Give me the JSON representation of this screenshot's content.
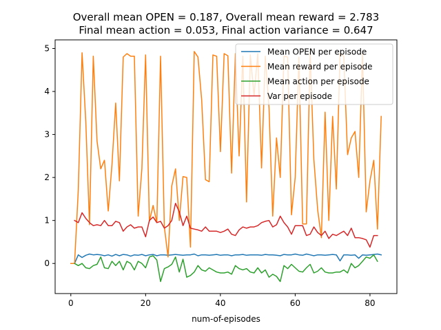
{
  "chart_data": {
    "type": "line",
    "title_lines": [
      "Overall mean OPEN = 0.187, Overall mean reward = 2.783",
      "Final mean action = 0.053, Final action variance = 0.647"
    ],
    "xlabel": "num-of-episodes",
    "ylabel": "",
    "xlim": [
      -4.2,
      87.2
    ],
    "ylim": [
      -0.7,
      5.2
    ],
    "xticks": [
      0,
      20,
      40,
      60,
      80
    ],
    "yticks": [
      0,
      1,
      2,
      3,
      4,
      5
    ],
    "grid": false,
    "legend_position": "top-right",
    "series": [
      {
        "name": "Mean OPEN per episode",
        "color": "#1f77b4",
        "x": [
          1,
          2,
          3,
          4,
          5,
          6,
          7,
          8,
          9,
          10,
          11,
          12,
          13,
          14,
          15,
          16,
          17,
          18,
          19,
          20,
          21,
          22,
          23,
          24,
          25,
          26,
          27,
          28,
          29,
          30,
          31,
          32,
          33,
          34,
          35,
          36,
          37,
          38,
          39,
          40,
          41,
          42,
          43,
          44,
          45,
          46,
          47,
          48,
          49,
          50,
          51,
          52,
          53,
          54,
          55,
          56,
          57,
          58,
          59,
          60,
          61,
          62,
          63,
          64,
          65,
          66,
          67,
          68,
          69,
          70,
          71,
          72,
          73,
          74,
          75,
          76,
          77,
          78,
          79,
          80,
          81,
          82,
          83
        ],
        "values": [
          0.0,
          0.2,
          0.14,
          0.19,
          0.22,
          0.2,
          0.21,
          0.2,
          0.18,
          0.2,
          0.17,
          0.21,
          0.18,
          0.21,
          0.2,
          0.17,
          0.2,
          0.19,
          0.21,
          0.18,
          0.2,
          0.21,
          0.18,
          0.2,
          0.2,
          0.19,
          0.2,
          0.21,
          0.2,
          0.19,
          0.2,
          0.2,
          0.22,
          0.18,
          0.2,
          0.2,
          0.19,
          0.2,
          0.21,
          0.19,
          0.2,
          0.2,
          0.18,
          0.2,
          0.2,
          0.21,
          0.19,
          0.2,
          0.2,
          0.2,
          0.19,
          0.21,
          0.2,
          0.2,
          0.19,
          0.18,
          0.21,
          0.2,
          0.2,
          0.22,
          0.2,
          0.19,
          0.22,
          0.2,
          0.18,
          0.2,
          0.2,
          0.19,
          0.2,
          0.21,
          0.2,
          0.06,
          0.2,
          0.2,
          0.19,
          0.2,
          0.12,
          0.2,
          0.19,
          0.2,
          0.21,
          0.22,
          0.2
        ]
      },
      {
        "name": "Mean reward per episode",
        "color": "#ff7f0e",
        "x": [
          0,
          1,
          2,
          3,
          4,
          5,
          6,
          7,
          8,
          9,
          10,
          11,
          12,
          13,
          14,
          15,
          16,
          17,
          18,
          19,
          20,
          21,
          22,
          23,
          24,
          25,
          26,
          27,
          28,
          29,
          30,
          31,
          32,
          33,
          34,
          35,
          36,
          37,
          38,
          39,
          40,
          41,
          42,
          43,
          44,
          45,
          46,
          47,
          48,
          49,
          50,
          51,
          52,
          53,
          54,
          55,
          56,
          57,
          58,
          59,
          60,
          61,
          62,
          63,
          64,
          65,
          66,
          67,
          68,
          69,
          70,
          71,
          72,
          73,
          74,
          75,
          76,
          77,
          78,
          79,
          80,
          81,
          82,
          83
        ],
        "values": [
          0.0,
          0.0,
          1.7,
          4.9,
          3.3,
          0.9,
          4.82,
          2.85,
          2.2,
          2.4,
          1.22,
          2.3,
          3.73,
          1.92,
          4.8,
          4.88,
          4.82,
          4.82,
          1.1,
          2.2,
          4.85,
          0.98,
          1.35,
          0.95,
          4.82,
          0.85,
          0.15,
          1.8,
          2.2,
          1.0,
          2.02,
          2.0,
          0.38,
          4.93,
          4.8,
          3.8,
          1.95,
          1.9,
          4.85,
          4.82,
          2.6,
          4.88,
          4.83,
          2.1,
          4.88,
          2.5,
          4.82,
          1.43,
          4.85,
          3.9,
          4.88,
          2.22,
          4.82,
          3.62,
          1.1,
          2.92,
          2.0,
          4.82,
          4.8,
          1.13,
          2.0,
          4.8,
          0.92,
          0.92,
          4.9,
          2.42,
          1.25,
          0.6,
          3.52,
          1.0,
          3.42,
          1.73,
          4.88,
          4.82,
          2.53,
          2.92,
          3.07,
          2.0,
          4.88,
          1.2,
          1.92,
          2.4,
          0.8,
          3.42
        ]
      },
      {
        "name": "Mean action per episode",
        "color": "#2ca02c",
        "x": [
          1,
          2,
          3,
          4,
          5,
          6,
          7,
          8,
          9,
          10,
          11,
          12,
          13,
          14,
          15,
          16,
          17,
          18,
          19,
          20,
          21,
          22,
          23,
          24,
          25,
          26,
          27,
          28,
          29,
          30,
          31,
          32,
          33,
          34,
          35,
          36,
          37,
          38,
          39,
          40,
          41,
          42,
          43,
          44,
          45,
          46,
          47,
          48,
          49,
          50,
          51,
          52,
          53,
          54,
          55,
          56,
          57,
          58,
          59,
          60,
          61,
          62,
          63,
          64,
          65,
          66,
          67,
          68,
          69,
          70,
          71,
          72,
          73,
          74,
          75,
          76,
          77,
          78,
          79,
          80,
          81,
          82
        ],
        "values": [
          0.0,
          -0.05,
          0.0,
          -0.1,
          -0.12,
          -0.05,
          -0.02,
          0.15,
          -0.1,
          -0.12,
          0.05,
          -0.05,
          0.05,
          -0.15,
          0.05,
          0.0,
          -0.15,
          0.05,
          0.0,
          -0.1,
          0.15,
          0.18,
          0.08,
          -0.42,
          -0.12,
          -0.08,
          -0.02,
          0.15,
          -0.2,
          0.1,
          -0.32,
          -0.28,
          -0.2,
          -0.05,
          -0.15,
          -0.18,
          -0.1,
          -0.15,
          -0.2,
          -0.22,
          -0.22,
          -0.2,
          -0.25,
          -0.05,
          -0.12,
          -0.15,
          -0.12,
          -0.2,
          -0.22,
          -0.1,
          -0.22,
          -0.15,
          -0.32,
          -0.25,
          -0.3,
          -0.42,
          -0.05,
          -0.12,
          -0.02,
          -0.1,
          -0.18,
          -0.2,
          -0.1,
          -0.02,
          -0.22,
          -0.18,
          -0.1,
          -0.2,
          -0.22,
          -0.22,
          -0.2,
          -0.2,
          -0.15,
          -0.22,
          0.0,
          -0.1,
          -0.05,
          0.05,
          0.15,
          0.12,
          0.2,
          0.05
        ]
      },
      {
        "name": "Var per episode",
        "color": "#d62728",
        "x": [
          1,
          2,
          3,
          4,
          5,
          6,
          7,
          8,
          9,
          10,
          11,
          12,
          13,
          14,
          15,
          16,
          17,
          18,
          19,
          20,
          21,
          22,
          23,
          24,
          25,
          26,
          27,
          28,
          29,
          30,
          31,
          32,
          33,
          34,
          35,
          36,
          37,
          38,
          39,
          40,
          41,
          42,
          43,
          44,
          45,
          46,
          47,
          48,
          49,
          50,
          51,
          52,
          53,
          54,
          55,
          56,
          57,
          58,
          59,
          60,
          61,
          62,
          63,
          64,
          65,
          66,
          67,
          68,
          69,
          70,
          71,
          72,
          73,
          74,
          75,
          76,
          77,
          78,
          79,
          80,
          81,
          82
        ],
        "values": [
          1.0,
          0.95,
          1.18,
          1.05,
          0.95,
          0.88,
          0.9,
          0.88,
          1.0,
          0.88,
          0.88,
          0.98,
          0.95,
          0.75,
          0.85,
          0.9,
          0.82,
          0.85,
          0.85,
          0.62,
          1.0,
          1.08,
          0.95,
          0.98,
          0.82,
          0.88,
          1.0,
          1.4,
          1.2,
          0.88,
          1.1,
          0.82,
          0.8,
          0.78,
          0.75,
          0.85,
          0.75,
          0.75,
          0.75,
          0.72,
          0.75,
          0.8,
          0.68,
          0.65,
          0.78,
          0.85,
          0.82,
          0.85,
          0.85,
          0.88,
          0.95,
          0.98,
          1.0,
          0.85,
          0.9,
          1.1,
          0.95,
          0.85,
          0.68,
          0.88,
          0.88,
          0.88,
          0.65,
          0.68,
          0.85,
          0.72,
          0.65,
          0.75,
          0.58,
          0.68,
          0.65,
          0.7,
          0.75,
          0.65,
          0.82,
          0.6,
          0.6,
          0.58,
          0.55,
          0.38,
          0.65,
          0.65
        ]
      }
    ]
  }
}
